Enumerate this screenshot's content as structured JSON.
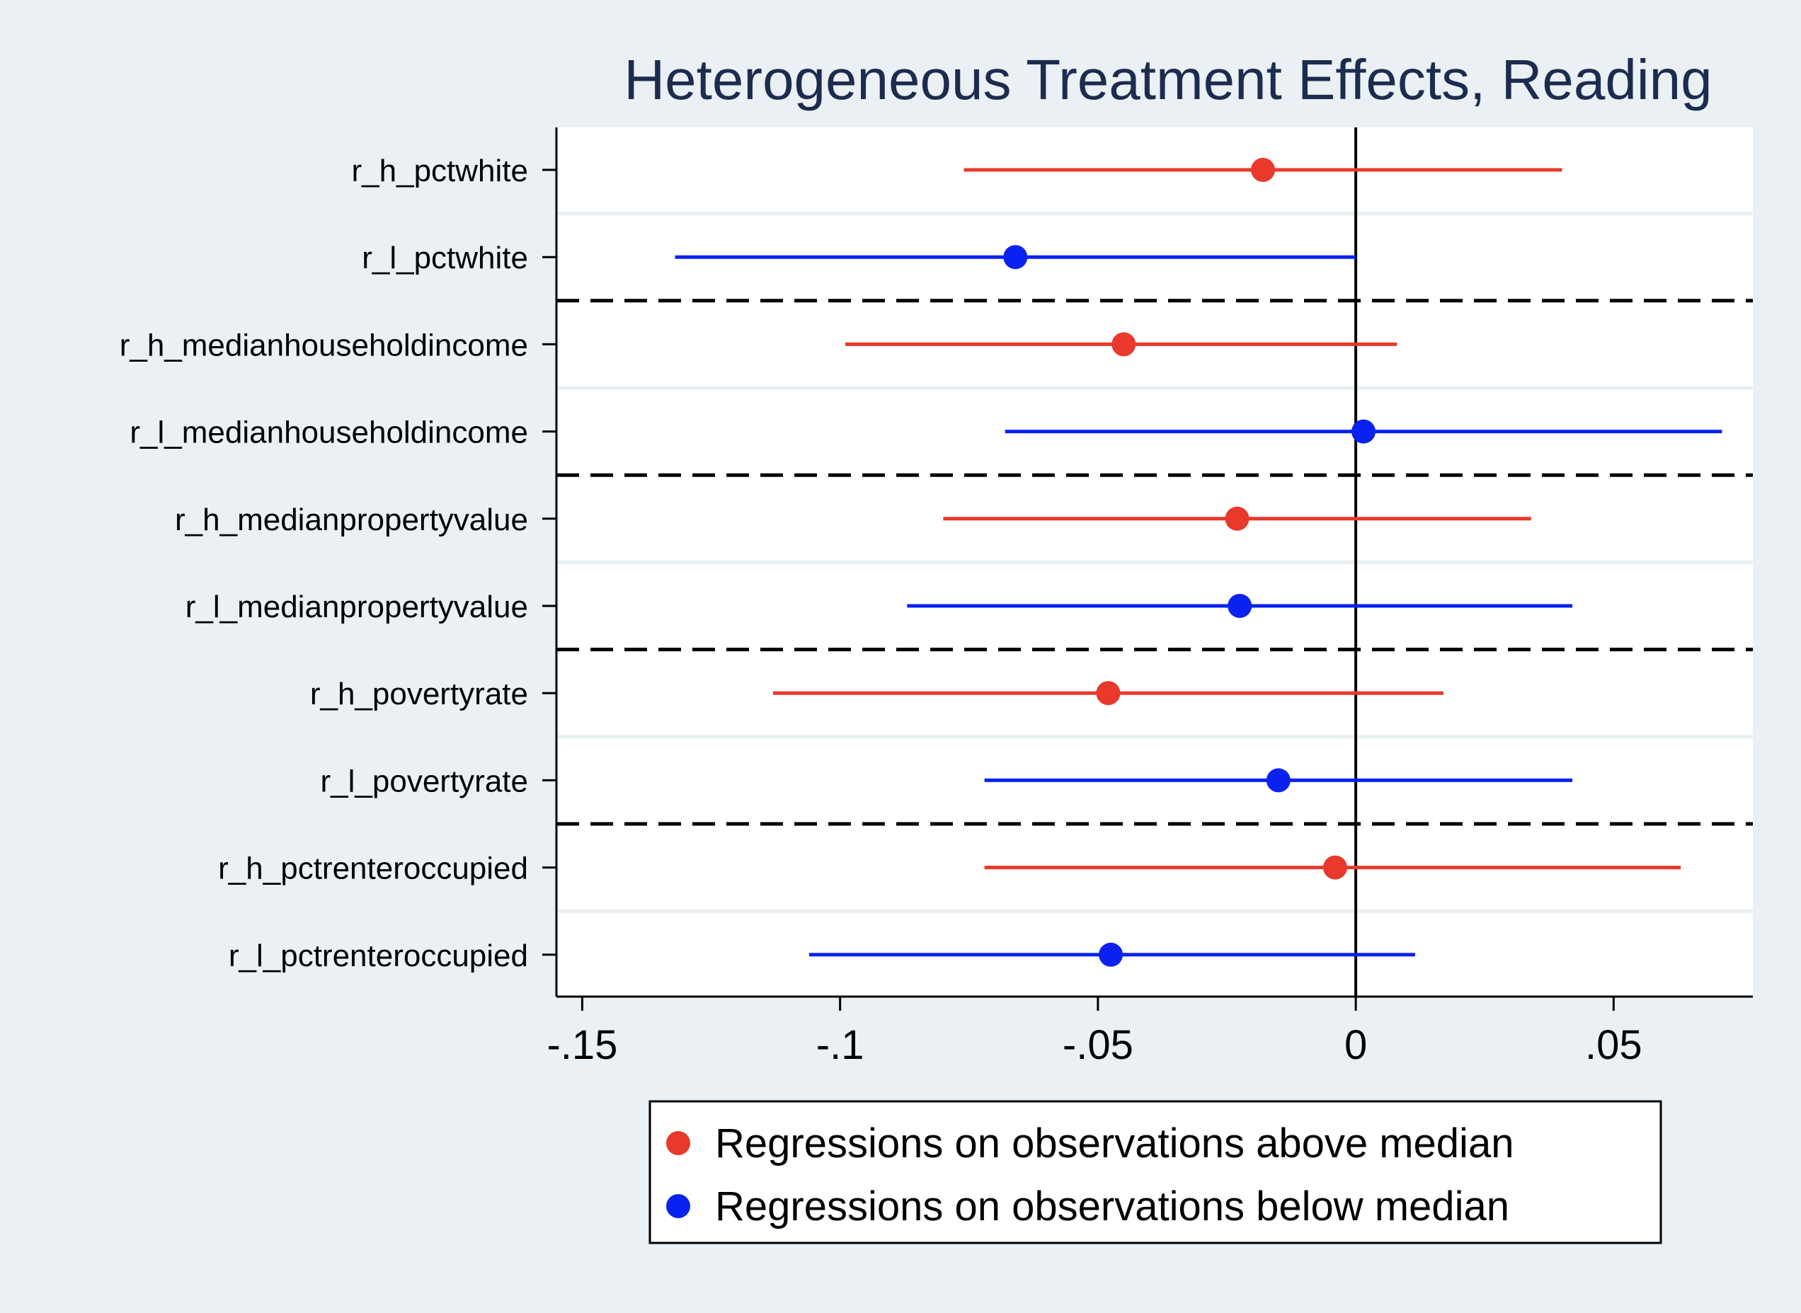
{
  "chart_data": {
    "type": "coefplot",
    "title": "Heterogeneous Treatment Effects, Reading",
    "xlabel": "",
    "ylabel": "",
    "xlim": [
      -0.155,
      0.077
    ],
    "xticks": [
      -0.15,
      -0.1,
      -0.05,
      0,
      0.05
    ],
    "xtick_labels": [
      "-.15",
      "-.1",
      "-.05",
      "0",
      ".05"
    ],
    "reference_line_x": 0,
    "categories": [
      "r_h_pctwhite",
      "r_l_pctwhite",
      "r_h_medianhouseholdincome",
      "r_l_medianhouseholdincome",
      "r_h_medianpropertyvalue",
      "r_l_medianpropertyvalue",
      "r_h_povertyrate",
      "r_l_povertyrate",
      "r_h_pctrenteroccupied",
      "r_l_pctrenteroccupied"
    ],
    "points": [
      {
        "category": "r_h_pctwhite",
        "series": "above",
        "estimate": -0.018,
        "ci_low": -0.076,
        "ci_high": 0.04
      },
      {
        "category": "r_l_pctwhite",
        "series": "below",
        "estimate": -0.066,
        "ci_low": -0.132,
        "ci_high": 0.0
      },
      {
        "category": "r_h_medianhouseholdincome",
        "series": "above",
        "estimate": -0.045,
        "ci_low": -0.099,
        "ci_high": 0.008
      },
      {
        "category": "r_l_medianhouseholdincome",
        "series": "below",
        "estimate": 0.0015,
        "ci_low": -0.068,
        "ci_high": 0.071
      },
      {
        "category": "r_h_medianpropertyvalue",
        "series": "above",
        "estimate": -0.023,
        "ci_low": -0.08,
        "ci_high": 0.034
      },
      {
        "category": "r_l_medianpropertyvalue",
        "series": "below",
        "estimate": -0.0225,
        "ci_low": -0.087,
        "ci_high": 0.042
      },
      {
        "category": "r_h_povertyrate",
        "series": "above",
        "estimate": -0.048,
        "ci_low": -0.113,
        "ci_high": 0.017
      },
      {
        "category": "r_l_povertyrate",
        "series": "below",
        "estimate": -0.015,
        "ci_low": -0.072,
        "ci_high": 0.042
      },
      {
        "category": "r_h_pctrenteroccupied",
        "series": "above",
        "estimate": -0.004,
        "ci_low": -0.072,
        "ci_high": 0.063
      },
      {
        "category": "r_l_pctrenteroccupied",
        "series": "below",
        "estimate": -0.0475,
        "ci_low": -0.106,
        "ci_high": 0.0115
      }
    ],
    "group_separators_after": [
      1,
      3,
      5,
      7
    ],
    "series": [
      {
        "key": "above",
        "name": "Regressions on observations above median",
        "color": "#e8392c"
      },
      {
        "key": "below",
        "name": "Regressions on observations below median",
        "color": "#0a22f0"
      }
    ],
    "grid": true,
    "legend_position": "bottom"
  },
  "colors": {
    "background": "#eaf0f3",
    "plot_background": "#ffffff",
    "title": "#1c2c4f",
    "axis": "#000000",
    "grid": "#eaf0f3"
  }
}
